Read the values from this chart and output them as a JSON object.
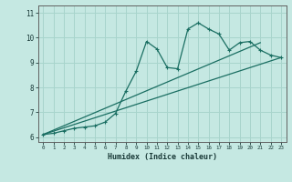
{
  "xlabel": "Humidex (Indice chaleur)",
  "bg_color": "#c5e8e2",
  "grid_color": "#a8d4cc",
  "line_color": "#1a6e62",
  "xlim": [
    -0.5,
    23.5
  ],
  "ylim": [
    5.8,
    11.3
  ],
  "xticks": [
    0,
    1,
    2,
    3,
    4,
    5,
    6,
    7,
    8,
    9,
    10,
    11,
    12,
    13,
    14,
    15,
    16,
    17,
    18,
    19,
    20,
    21,
    22,
    23
  ],
  "yticks": [
    6,
    7,
    8,
    9,
    10,
    11
  ],
  "series1_x": [
    0,
    1,
    2,
    3,
    4,
    5,
    6,
    7,
    8,
    9,
    10,
    11,
    12,
    13,
    14,
    15,
    16,
    17,
    18,
    19,
    20,
    21,
    22,
    23
  ],
  "series1_y": [
    6.1,
    6.15,
    6.25,
    6.35,
    6.4,
    6.45,
    6.6,
    6.95,
    7.85,
    8.65,
    9.85,
    9.55,
    8.8,
    8.75,
    10.35,
    10.6,
    10.35,
    10.15,
    9.5,
    9.8,
    9.85,
    9.5,
    9.3,
    9.2
  ],
  "line1_x": [
    0,
    23
  ],
  "line1_y": [
    6.1,
    9.2
  ],
  "line2_x": [
    0,
    21
  ],
  "line2_y": [
    6.1,
    9.8
  ]
}
